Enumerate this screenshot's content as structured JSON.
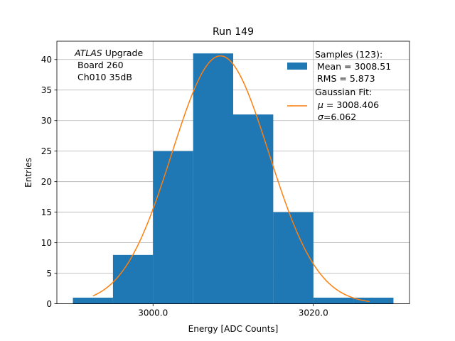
{
  "chart_data": {
    "type": "bar",
    "title": "Run 149",
    "xlabel": "Energy [ADC Counts]",
    "ylabel": "Entries",
    "xlim": [
      2988,
      3032
    ],
    "ylim": [
      0,
      43
    ],
    "grid": true,
    "histogram": {
      "name": "Samples (123):",
      "bin_edges": [
        2990,
        2995,
        3000,
        3005,
        3010,
        3015,
        3020,
        3025,
        3030
      ],
      "counts": [
        1,
        8,
        25,
        41,
        31,
        15,
        1,
        1
      ],
      "color": "#1f77b4"
    },
    "fit": {
      "name": "Gaussian Fit:",
      "mu": 3008.406,
      "sigma": 6.062,
      "peak": 40.6,
      "x_range": [
        2992.5,
        3027.0
      ],
      "color": "#ff7f0e"
    },
    "x_ticks": [
      {
        "value": 3000,
        "label": "3000.0"
      },
      {
        "value": 3020,
        "label": "3020.0"
      }
    ],
    "y_ticks": [
      {
        "value": 0,
        "label": "0"
      },
      {
        "value": 5,
        "label": "5"
      },
      {
        "value": 10,
        "label": "10"
      },
      {
        "value": 15,
        "label": "15"
      },
      {
        "value": 20,
        "label": "20"
      },
      {
        "value": 25,
        "label": "25"
      },
      {
        "value": 30,
        "label": "30"
      },
      {
        "value": 35,
        "label": "35"
      },
      {
        "value": 40,
        "label": "40"
      }
    ],
    "annotation": {
      "experiment": "ATLAS",
      "line1_rest": " Upgrade",
      "line2": "Board 260",
      "line3": "Ch010 35dB"
    },
    "legend": {
      "placement": "top-right",
      "samples_title": "Samples (123):",
      "samples_mean": "Mean = 3008.51",
      "samples_rms": "RMS = 5.873",
      "fit_title": "Gaussian Fit:",
      "fit_mu_symbol": "μ",
      "fit_mu_value": " = 3008.406",
      "fit_sigma_symbol": "σ",
      "fit_sigma_value": "=6.062"
    }
  }
}
